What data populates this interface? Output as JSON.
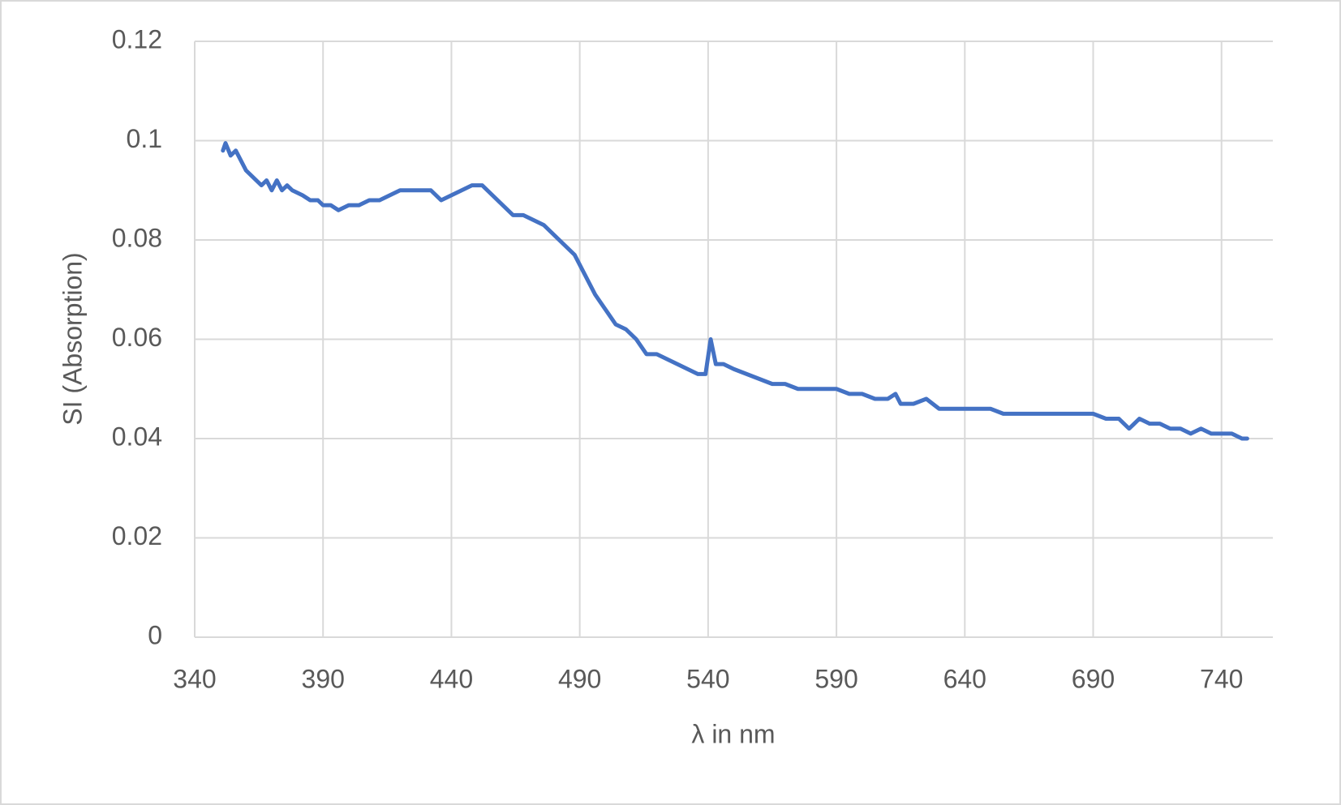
{
  "chart_data": {
    "type": "line",
    "x_label": "λ in nm",
    "y_label": "SI (Absorption)",
    "x": [
      351,
      352,
      354,
      356,
      358,
      360,
      362,
      364,
      366,
      368,
      370,
      372,
      374,
      376,
      378,
      382,
      385,
      388,
      390,
      393,
      396,
      400,
      404,
      408,
      412,
      416,
      420,
      424,
      428,
      432,
      436,
      440,
      444,
      448,
      452,
      456,
      460,
      464,
      468,
      472,
      476,
      480,
      484,
      488,
      492,
      496,
      500,
      504,
      508,
      512,
      516,
      520,
      524,
      528,
      532,
      536,
      539,
      541,
      543,
      546,
      550,
      555,
      560,
      565,
      570,
      575,
      580,
      585,
      590,
      595,
      600,
      605,
      610,
      613,
      615,
      620,
      625,
      630,
      635,
      640,
      645,
      650,
      655,
      660,
      665,
      670,
      675,
      680,
      685,
      690,
      695,
      700,
      704,
      708,
      712,
      716,
      720,
      724,
      728,
      732,
      736,
      740,
      744,
      748,
      750
    ],
    "values": [
      0.098,
      0.0995,
      0.097,
      0.098,
      0.096,
      0.094,
      0.093,
      0.092,
      0.091,
      0.092,
      0.09,
      0.092,
      0.09,
      0.091,
      0.09,
      0.089,
      0.088,
      0.088,
      0.087,
      0.087,
      0.086,
      0.087,
      0.087,
      0.088,
      0.088,
      0.089,
      0.09,
      0.09,
      0.09,
      0.09,
      0.088,
      0.089,
      0.09,
      0.091,
      0.091,
      0.089,
      0.087,
      0.085,
      0.085,
      0.084,
      0.083,
      0.081,
      0.079,
      0.077,
      0.073,
      0.069,
      0.066,
      0.063,
      0.062,
      0.06,
      0.057,
      0.057,
      0.056,
      0.055,
      0.054,
      0.053,
      0.053,
      0.06,
      0.055,
      0.055,
      0.054,
      0.053,
      0.052,
      0.051,
      0.051,
      0.05,
      0.05,
      0.05,
      0.05,
      0.049,
      0.049,
      0.048,
      0.048,
      0.049,
      0.047,
      0.047,
      0.048,
      0.046,
      0.046,
      0.046,
      0.046,
      0.046,
      0.045,
      0.045,
      0.045,
      0.045,
      0.045,
      0.045,
      0.045,
      0.045,
      0.044,
      0.044,
      0.042,
      0.044,
      0.043,
      0.043,
      0.042,
      0.042,
      0.041,
      0.042,
      0.041,
      0.041,
      0.041,
      0.04,
      0.04
    ],
    "color": "#4472c4",
    "xlim": [
      340,
      760
    ],
    "xticks": [
      340,
      390,
      440,
      490,
      540,
      590,
      640,
      690,
      740
    ],
    "ylim": [
      0,
      0.12
    ],
    "yticks": [
      0,
      0.02,
      0.04,
      0.06,
      0.08,
      0.1,
      0.12
    ],
    "grid": true
  }
}
